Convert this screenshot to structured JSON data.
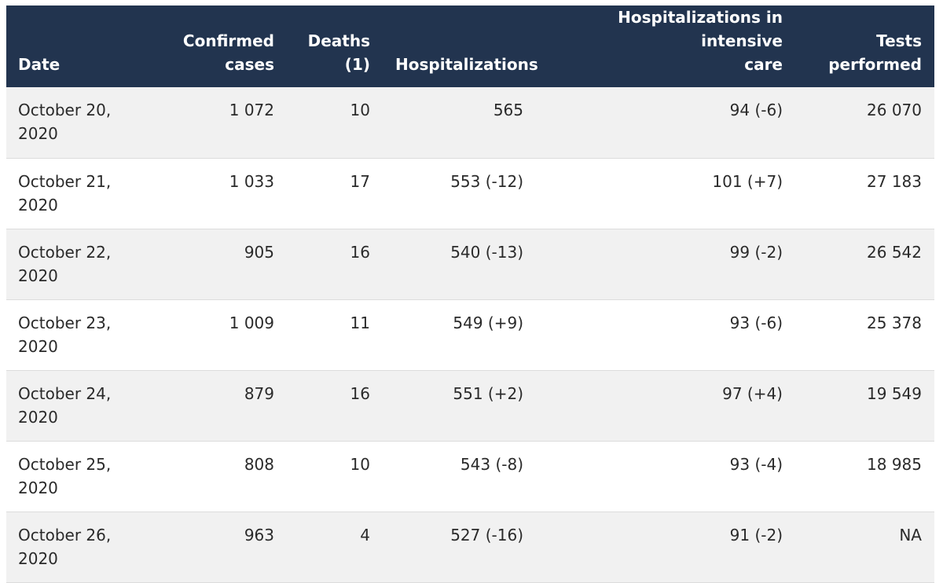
{
  "table": {
    "headers": [
      {
        "lines": [
          "Date"
        ]
      },
      {
        "lines": [
          "Confirmed",
          "cases"
        ]
      },
      {
        "lines": [
          "Deaths",
          "(1)"
        ]
      },
      {
        "lines": [
          "Hospitalizations"
        ]
      },
      {
        "lines": [
          "Hospitalizations in intensive",
          "care"
        ]
      },
      {
        "lines": [
          "Tests",
          "performed"
        ]
      }
    ],
    "rows": [
      {
        "date": [
          "October 20,",
          "2020"
        ],
        "cases": "1 072",
        "deaths": "10",
        "hosp": "565",
        "icu": "94 (-6)",
        "tests": "26 070"
      },
      {
        "date": [
          "October 21,",
          "2020"
        ],
        "cases": "1 033",
        "deaths": "17",
        "hosp": "553 (-12)",
        "icu": "101 (+7)",
        "tests": "27 183"
      },
      {
        "date": [
          "October 22,",
          "2020"
        ],
        "cases": "905",
        "deaths": "16",
        "hosp": "540 (-13)",
        "icu": "99 (-2)",
        "tests": "26 542"
      },
      {
        "date": [
          "October 23,",
          "2020"
        ],
        "cases": "1 009",
        "deaths": "11",
        "hosp": "549 (+9)",
        "icu": "93 (-6)",
        "tests": "25 378"
      },
      {
        "date": [
          "October 24,",
          "2020"
        ],
        "cases": "879",
        "deaths": "16",
        "hosp": "551 (+2)",
        "icu": "97 (+4)",
        "tests": "19 549"
      },
      {
        "date": [
          "October 25,",
          "2020"
        ],
        "cases": "808",
        "deaths": "10",
        "hosp": "543 (-8)",
        "icu": "93 (-4)",
        "tests": "18 985"
      },
      {
        "date": [
          "October 26,",
          "2020"
        ],
        "cases": "963",
        "deaths": "4",
        "hosp": "527 (-16)",
        "icu": "91 (-2)",
        "tests": "NA"
      }
    ]
  },
  "colors": {
    "header_bg": "#22344f",
    "row_alt_bg": "#f1f1f1",
    "row_bg": "#ffffff",
    "header_text": "#ffffff"
  }
}
